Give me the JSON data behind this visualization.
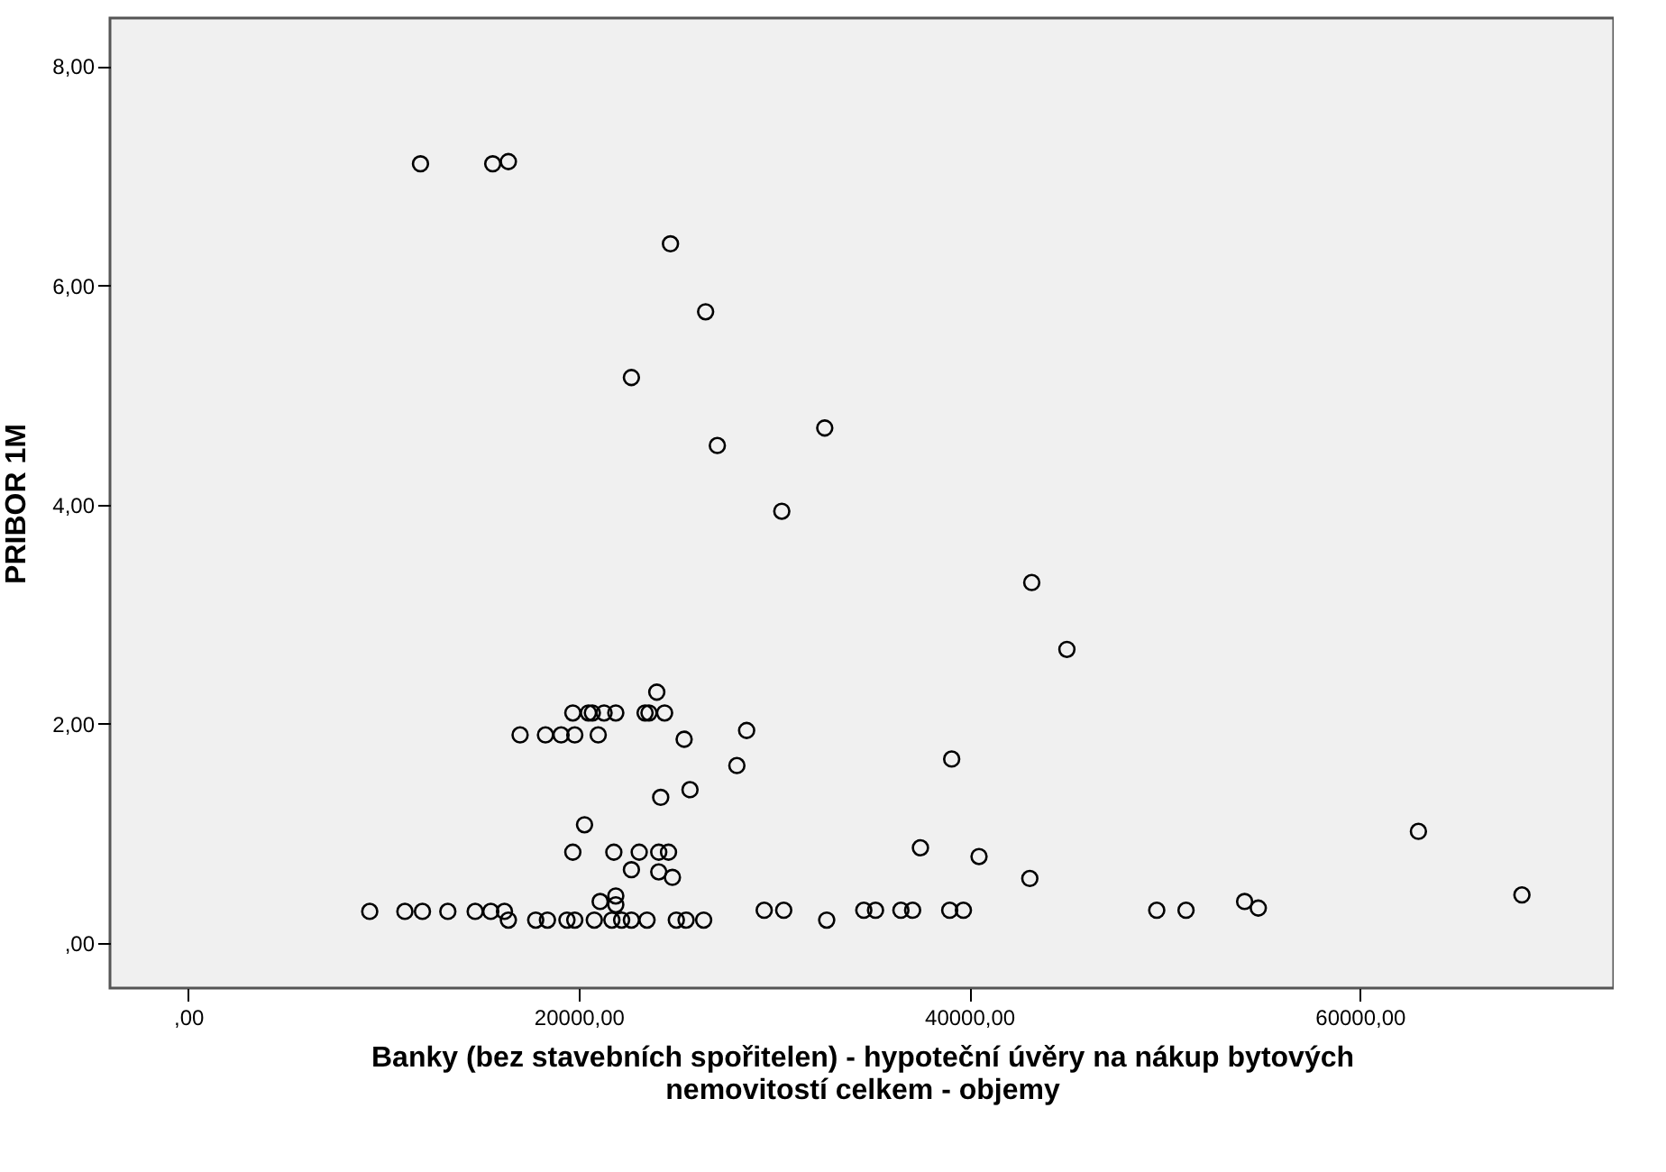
{
  "chart_data": {
    "type": "scatter",
    "xlabel": "Banky (bez stavebních spořitelen) - hypoteční úvěry na nákup bytových nemovitostí celkem - objemy",
    "ylabel": "PRIBOR 1M",
    "marker": "circle",
    "grid": false,
    "xlim": [
      -4000,
      73000
    ],
    "ylim": [
      -0.41,
      8.44
    ],
    "xticks": [
      {
        "value": 0,
        "label": ",00"
      },
      {
        "value": 20000,
        "label": "20000,00"
      },
      {
        "value": 40000,
        "label": "40000,00"
      },
      {
        "value": 60000,
        "label": "60000,00"
      }
    ],
    "yticks": [
      {
        "value": 0,
        "label": ",00"
      },
      {
        "value": 2,
        "label": "2,00"
      },
      {
        "value": 4,
        "label": "4,00"
      },
      {
        "value": 6,
        "label": "6,00"
      },
      {
        "value": 8,
        "label": "8,00"
      }
    ],
    "series": [
      {
        "color": "#000000",
        "x": [
          11900,
          15600,
          16400,
          24700,
          26500,
          22700,
          32600,
          27100,
          30400,
          43200,
          45000,
          24000,
          19700,
          20500,
          20700,
          21300,
          21900,
          23400,
          23600,
          24400,
          17000,
          18300,
          19100,
          19800,
          21000,
          25400,
          28600,
          28100,
          24200,
          25700,
          20300,
          19700,
          21800,
          23100,
          24100,
          24600,
          22700,
          24100,
          24800,
          21100,
          21900,
          21900,
          9300,
          11100,
          12000,
          13300,
          14700,
          15500,
          16200,
          16400,
          17800,
          18400,
          19400,
          19800,
          20800,
          21700,
          22200,
          22700,
          23500,
          25000,
          25500,
          26400,
          29500,
          30500,
          39100,
          37500,
          40500,
          43100,
          63000,
          68300,
          34600,
          35200,
          36500,
          37100,
          39000,
          39700,
          49600,
          51100,
          32700,
          54100,
          54800
        ],
        "values": [
          7.11,
          7.11,
          7.13,
          6.38,
          5.76,
          5.16,
          4.7,
          4.54,
          3.94,
          3.29,
          2.68,
          2.29,
          2.1,
          2.1,
          2.1,
          2.1,
          2.1,
          2.1,
          2.1,
          2.1,
          1.9,
          1.9,
          1.9,
          1.9,
          1.9,
          1.86,
          1.94,
          1.62,
          1.33,
          1.4,
          1.08,
          0.83,
          0.83,
          0.83,
          0.83,
          0.83,
          0.67,
          0.65,
          0.6,
          0.38,
          0.43,
          0.35,
          0.29,
          0.29,
          0.29,
          0.29,
          0.29,
          0.29,
          0.29,
          0.21,
          0.21,
          0.21,
          0.21,
          0.21,
          0.21,
          0.21,
          0.21,
          0.21,
          0.21,
          0.21,
          0.21,
          0.21,
          0.3,
          0.3,
          1.68,
          0.87,
          0.79,
          0.59,
          1.02,
          0.44,
          0.3,
          0.3,
          0.3,
          0.3,
          0.3,
          0.3,
          0.3,
          0.3,
          0.21,
          0.38,
          0.32
        ]
      }
    ]
  }
}
